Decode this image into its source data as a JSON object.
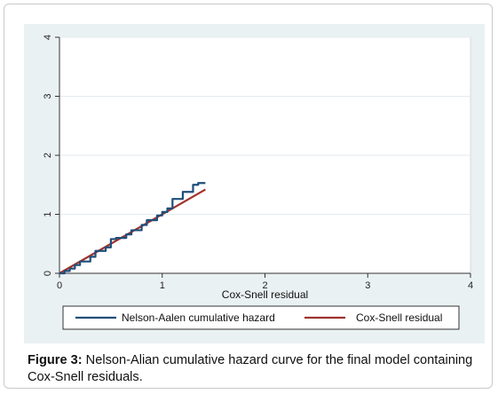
{
  "chart_data": {
    "type": "line",
    "title": "",
    "xlabel": "Cox-Snell residual",
    "ylabel": "",
    "xlim": [
      0,
      4
    ],
    "ylim": [
      0,
      4
    ],
    "x_ticks": [
      "0",
      "1",
      "2",
      "3",
      "4"
    ],
    "y_ticks": [
      "0",
      "1",
      "2",
      "3",
      "4"
    ],
    "grid": true,
    "legend_position": "bottom",
    "series": [
      {
        "name": "Nelson-Aalen cumulative hazard",
        "color": "#1f4e79",
        "step": true,
        "x": [
          0,
          0.05,
          0.1,
          0.15,
          0.2,
          0.3,
          0.35,
          0.45,
          0.5,
          0.55,
          0.65,
          0.7,
          0.8,
          0.85,
          0.95,
          1.0,
          1.05,
          1.1,
          1.2,
          1.3,
          1.35,
          1.42
        ],
        "y": [
          0,
          0.04,
          0.08,
          0.14,
          0.2,
          0.28,
          0.38,
          0.44,
          0.58,
          0.6,
          0.66,
          0.73,
          0.82,
          0.9,
          0.98,
          1.04,
          1.1,
          1.26,
          1.38,
          1.5,
          1.53,
          1.53
        ]
      },
      {
        "name": "Cox-Snell residual",
        "color": "#a0322d",
        "step": false,
        "x": [
          0,
          1.42
        ],
        "y": [
          0,
          1.42
        ]
      }
    ]
  },
  "caption": {
    "label": "Figure 3:",
    "text": " Nelson-Alian cumulative hazard curve for the final model containing Cox-Snell residuals."
  }
}
